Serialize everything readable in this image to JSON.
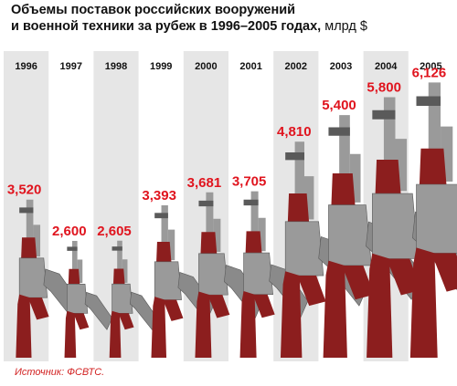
{
  "title_line1": "Объемы поставок российских вооружений",
  "title_line2": "и военной техники за рубеж в 1996–2005 годах,",
  "unit": "млрд $",
  "source": "Источник: ФСВТС.",
  "colors": {
    "value_label": "#e0141e",
    "stripe": "#e6e6e6",
    "rifle_metal": "#9a9a9a",
    "rifle_dark": "#5a5a5a",
    "rifle_wood": "#8c1e1e"
  },
  "chart_data": {
    "type": "bar",
    "categories": [
      "1996",
      "1997",
      "1998",
      "1999",
      "2000",
      "2001",
      "2002",
      "2003",
      "2004",
      "2005"
    ],
    "values": [
      3.52,
      2.6,
      2.605,
      3.393,
      3.681,
      3.705,
      4.81,
      5.4,
      5.8,
      6.126
    ],
    "value_labels": [
      "3,520",
      "2,600",
      "2,605",
      "3,393",
      "3,681",
      "3,705",
      "4,810",
      "5,400",
      "5,800",
      "6,126"
    ],
    "title": "Объемы поставок российских вооружений и военной техники за рубеж в 1996–2005 годах, млрд $",
    "xlabel": "",
    "ylabel": "",
    "ylim": [
      0,
      6.5
    ],
    "grid": false
  }
}
